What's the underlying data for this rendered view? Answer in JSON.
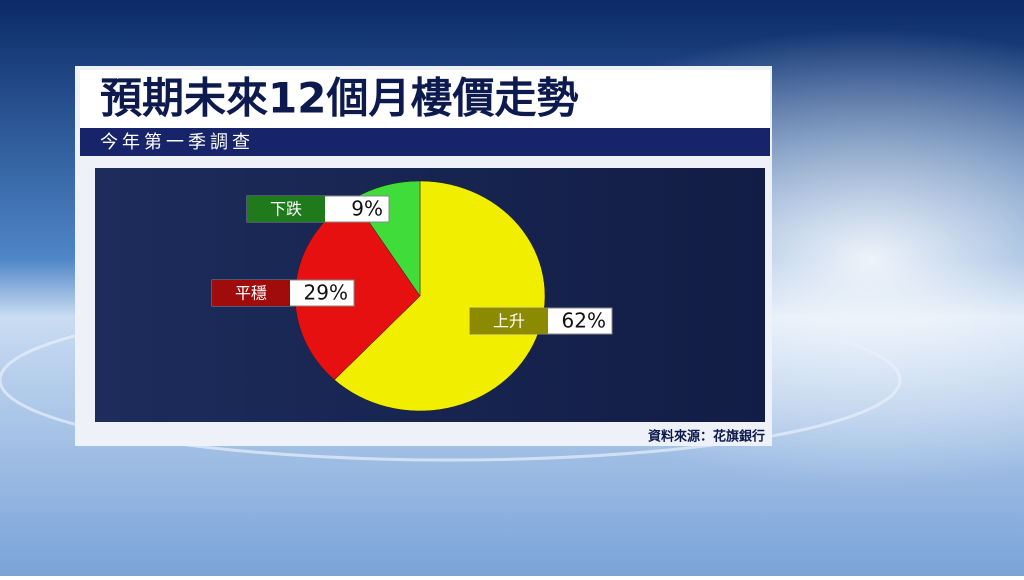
{
  "chart_data": {
    "type": "pie",
    "title": "預期未來12個月樓價走勢",
    "subtitle": "今年第一季調查",
    "source": "資料來源：花旗銀行",
    "categories": [
      "上升",
      "平穩",
      "下跌"
    ],
    "values": [
      62,
      29,
      9
    ],
    "value_labels": [
      "62%",
      "29%",
      "9%"
    ],
    "colors": [
      "#f2ee00",
      "#e61010",
      "#3fdc3a"
    ]
  }
}
